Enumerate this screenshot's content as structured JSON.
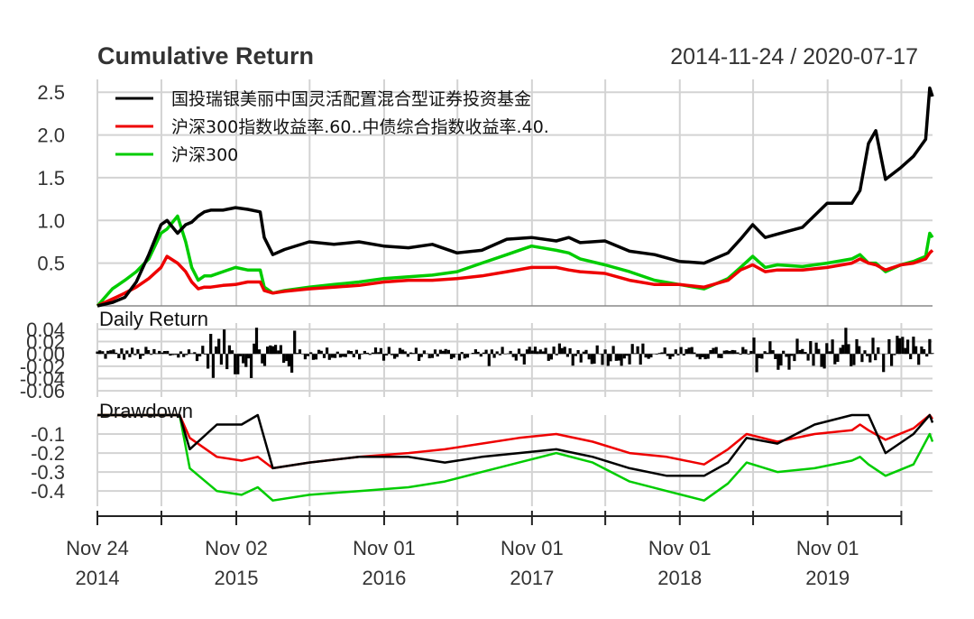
{
  "title": "Cumulative Return",
  "date_range": "2014-11-24 / 2020-07-17",
  "colors": {
    "fund": "#000000",
    "benchmark": "#ee0000",
    "csi300": "#00cc00",
    "grid": "#d3d3d3"
  },
  "chart_data": [
    {
      "type": "line",
      "panel": "Cumulative Return",
      "ylim": [
        0,
        2.65
      ],
      "yticks": [
        "0.5",
        "1.0",
        "1.5",
        "2.0",
        "2.5"
      ],
      "legend_position": "top-left",
      "grid": true,
      "x": [
        "2014-11-24",
        "2014-12-31",
        "2015-01-31",
        "2015-02-28",
        "2015-03-31",
        "2015-04-30",
        "2015-05-15",
        "2015-06-10",
        "2015-06-30",
        "2015-07-15",
        "2015-07-31",
        "2015-08-15",
        "2015-08-31",
        "2015-09-30",
        "2015-10-31",
        "2015-11-30",
        "2015-12-31",
        "2016-01-10",
        "2016-01-31",
        "2016-02-29",
        "2016-04-30",
        "2016-06-30",
        "2016-08-31",
        "2016-10-31",
        "2016-12-31",
        "2017-02-28",
        "2017-04-30",
        "2017-06-30",
        "2017-08-31",
        "2017-10-31",
        "2017-12-31",
        "2018-01-31",
        "2018-02-28",
        "2018-04-30",
        "2018-06-30",
        "2018-08-31",
        "2018-10-31",
        "2018-12-31",
        "2019-02-28",
        "2019-03-31",
        "2019-04-30",
        "2019-05-31",
        "2019-06-30",
        "2019-08-31",
        "2019-10-31",
        "2019-12-31",
        "2020-01-20",
        "2020-02-10",
        "2020-02-28",
        "2020-03-23",
        "2020-04-30",
        "2020-05-31",
        "2020-06-30",
        "2020-07-10",
        "2020-07-17"
      ],
      "series": [
        {
          "name": "国投瑞银美丽中国灵活配置混合型证券投资基金",
          "values": [
            0.0,
            0.04,
            0.1,
            0.28,
            0.6,
            0.95,
            1.0,
            0.85,
            0.95,
            0.98,
            1.05,
            1.1,
            1.12,
            1.12,
            1.15,
            1.13,
            1.1,
            0.8,
            0.6,
            0.66,
            0.75,
            0.72,
            0.75,
            0.7,
            0.68,
            0.72,
            0.62,
            0.65,
            0.78,
            0.8,
            0.76,
            0.8,
            0.74,
            0.76,
            0.64,
            0.6,
            0.52,
            0.5,
            0.62,
            0.78,
            0.95,
            0.8,
            0.84,
            0.92,
            1.2,
            1.2,
            1.35,
            1.9,
            2.05,
            1.48,
            1.62,
            1.75,
            1.95,
            2.55,
            2.45
          ]
        },
        {
          "name": "沪深300指数收益率.60..中债综合指数收益率.40.",
          "values": [
            0.0,
            0.08,
            0.15,
            0.22,
            0.32,
            0.45,
            0.58,
            0.5,
            0.4,
            0.28,
            0.2,
            0.22,
            0.22,
            0.24,
            0.25,
            0.28,
            0.28,
            0.18,
            0.15,
            0.17,
            0.2,
            0.22,
            0.24,
            0.28,
            0.3,
            0.3,
            0.32,
            0.35,
            0.4,
            0.45,
            0.45,
            0.42,
            0.4,
            0.38,
            0.3,
            0.25,
            0.25,
            0.22,
            0.3,
            0.42,
            0.48,
            0.4,
            0.42,
            0.42,
            0.45,
            0.5,
            0.55,
            0.5,
            0.48,
            0.42,
            0.48,
            0.5,
            0.55,
            0.62,
            0.65
          ]
        },
        {
          "name": "沪深300",
          "values": [
            0.0,
            0.2,
            0.3,
            0.4,
            0.55,
            0.85,
            0.9,
            1.05,
            0.75,
            0.45,
            0.3,
            0.35,
            0.35,
            0.4,
            0.45,
            0.42,
            0.42,
            0.22,
            0.15,
            0.18,
            0.22,
            0.25,
            0.28,
            0.32,
            0.34,
            0.36,
            0.4,
            0.5,
            0.6,
            0.7,
            0.65,
            0.62,
            0.55,
            0.48,
            0.4,
            0.3,
            0.25,
            0.2,
            0.32,
            0.45,
            0.58,
            0.45,
            0.48,
            0.46,
            0.5,
            0.55,
            0.6,
            0.5,
            0.5,
            0.4,
            0.48,
            0.52,
            0.58,
            0.85,
            0.8
          ]
        }
      ]
    },
    {
      "type": "bar",
      "panel": "Daily Return",
      "ylim": [
        -0.07,
        0.05
      ],
      "yticks": [
        "0.04",
        "0.02",
        "0.00",
        "-0.02",
        "-0.04",
        "-0.06"
      ],
      "series_name": "国投瑞银美丽中国灵活配置混合型证券投资基金"
    },
    {
      "type": "line",
      "panel": "Drawdown",
      "ylim": [
        -0.48,
        0.0
      ],
      "yticks": [
        "-0.1",
        "-0.2",
        "-0.3",
        "-0.4"
      ],
      "x": [
        "2014-11-24",
        "2015-03-31",
        "2015-06-15",
        "2015-07-10",
        "2015-09-15",
        "2015-11-15",
        "2015-12-25",
        "2016-01-31",
        "2016-04-30",
        "2016-08-31",
        "2016-12-31",
        "2017-03-31",
        "2017-06-30",
        "2017-09-30",
        "2017-12-31",
        "2018-03-31",
        "2018-06-30",
        "2018-09-30",
        "2018-12-31",
        "2019-02-28",
        "2019-04-15",
        "2019-06-30",
        "2019-09-30",
        "2019-12-31",
        "2020-01-20",
        "2020-02-10",
        "2020-03-23",
        "2020-05-31",
        "2020-07-10",
        "2020-07-17"
      ],
      "series": [
        {
          "name": "国投瑞银美丽中国灵活配置混合型证券投资基金",
          "values": [
            0.0,
            0.0,
            0.0,
            -0.18,
            -0.05,
            -0.05,
            0.0,
            -0.28,
            -0.25,
            -0.22,
            -0.22,
            -0.25,
            -0.22,
            -0.2,
            -0.18,
            -0.22,
            -0.28,
            -0.32,
            -0.32,
            -0.25,
            -0.12,
            -0.15,
            -0.05,
            0.0,
            0.0,
            0.0,
            -0.2,
            -0.1,
            0.0,
            -0.04
          ]
        },
        {
          "name": "沪深300指数收益率.60..中债综合指数收益率.40.",
          "values": [
            0.0,
            0.0,
            0.0,
            -0.12,
            -0.22,
            -0.24,
            -0.22,
            -0.28,
            -0.25,
            -0.22,
            -0.2,
            -0.18,
            -0.15,
            -0.12,
            -0.1,
            -0.14,
            -0.2,
            -0.22,
            -0.26,
            -0.18,
            -0.1,
            -0.14,
            -0.1,
            -0.08,
            -0.05,
            -0.08,
            -0.13,
            -0.07,
            0.0,
            -0.02
          ]
        },
        {
          "name": "沪深300",
          "values": [
            0.0,
            0.0,
            0.0,
            -0.28,
            -0.4,
            -0.42,
            -0.38,
            -0.45,
            -0.42,
            -0.4,
            -0.38,
            -0.35,
            -0.3,
            -0.25,
            -0.2,
            -0.25,
            -0.35,
            -0.4,
            -0.45,
            -0.36,
            -0.25,
            -0.3,
            -0.28,
            -0.24,
            -0.22,
            -0.26,
            -0.32,
            -0.26,
            -0.1,
            -0.14
          ]
        }
      ]
    }
  ],
  "x_axis_labels": [
    {
      "date": "2014-11-24",
      "line1": "Nov 24",
      "line2": "2014"
    },
    {
      "date": "2015-11-02",
      "line1": "Nov 02",
      "line2": "2015"
    },
    {
      "date": "2016-11-01",
      "line1": "Nov 01",
      "line2": "2016"
    },
    {
      "date": "2017-11-01",
      "line1": "Nov 01",
      "line2": "2017"
    },
    {
      "date": "2018-11-01",
      "line1": "Nov 01",
      "line2": "2018"
    },
    {
      "date": "2019-11-01",
      "line1": "Nov 01",
      "line2": "2019"
    }
  ],
  "minor_ticks": [
    "2015-05-01",
    "2016-05-01",
    "2017-05-01",
    "2018-05-01",
    "2019-05-01",
    "2020-05-01"
  ]
}
